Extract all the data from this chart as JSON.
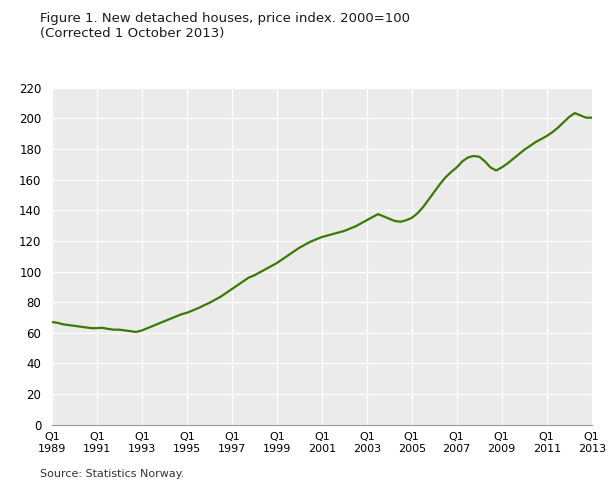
{
  "title": "Figure 1. New detached houses, price index. 2000=100\n(Corrected 1 October 2013)",
  "source": "Source: Statistics Norway.",
  "line_color": "#3a7a00",
  "line_width": 1.6,
  "bg_color": "#ffffff",
  "plot_bg_color": "#ebebeb",
  "grid_color": "#ffffff",
  "ylim": [
    0,
    220
  ],
  "yticks": [
    0,
    20,
    40,
    60,
    80,
    100,
    120,
    140,
    160,
    180,
    200,
    220
  ],
  "xtick_years": [
    1989,
    1991,
    1993,
    1995,
    1997,
    1999,
    2001,
    2003,
    2005,
    2007,
    2009,
    2011,
    2013
  ],
  "values": [
    67.0,
    66.5,
    65.5,
    65.0,
    64.5,
    64.0,
    63.5,
    63.0,
    63.0,
    63.2,
    62.5,
    62.0,
    62.0,
    61.5,
    61.0,
    60.5,
    61.5,
    63.0,
    64.5,
    66.0,
    67.5,
    69.0,
    70.5,
    72.0,
    73.0,
    74.5,
    76.0,
    77.8,
    79.5,
    81.5,
    83.5,
    86.0,
    88.5,
    91.0,
    93.5,
    96.0,
    97.5,
    99.5,
    101.5,
    103.5,
    105.5,
    108.0,
    110.5,
    113.0,
    115.5,
    117.5,
    119.5,
    121.0,
    122.5,
    123.5,
    124.5,
    125.5,
    126.5,
    128.0,
    129.5,
    131.5,
    133.5,
    135.5,
    137.5,
    136.0,
    134.5,
    133.0,
    132.5,
    133.5,
    135.0,
    138.0,
    142.0,
    147.0,
    152.0,
    157.0,
    161.5,
    165.0,
    168.0,
    172.0,
    174.5,
    175.5,
    175.0,
    172.0,
    168.0,
    166.0,
    168.0,
    170.5,
    173.5,
    176.5,
    179.5,
    182.0,
    184.5,
    186.5,
    188.5,
    191.0,
    194.0,
    197.5,
    201.0,
    203.5,
    202.0,
    200.5,
    200.5
  ]
}
